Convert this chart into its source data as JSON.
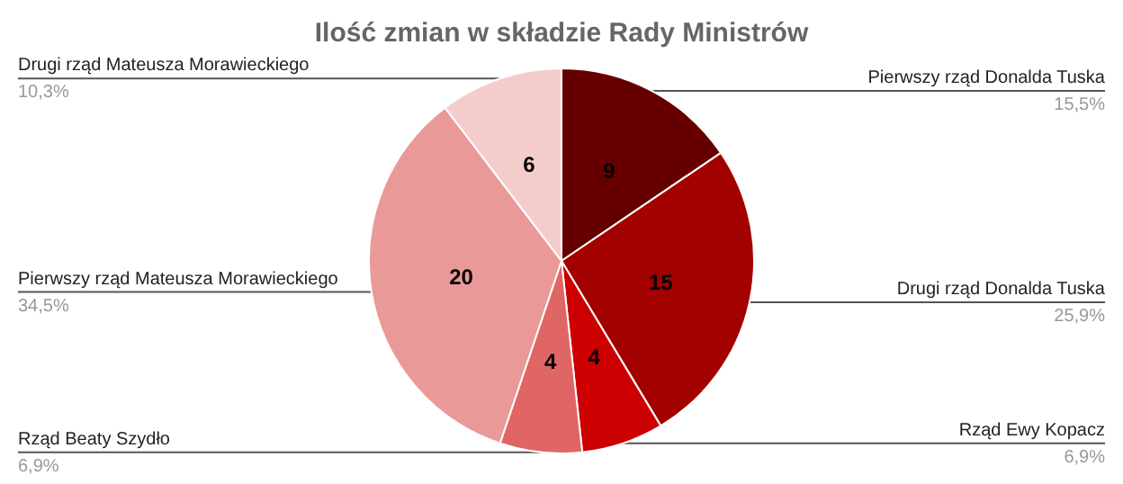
{
  "chart_data": {
    "type": "pie",
    "title": "Ilość zmian w składzie Rady Ministrów",
    "categories": [
      "Pierwszy rząd Donalda Tuska",
      "Drugi rząd Donalda Tuska",
      "Rząd Ewy Kopacz",
      "Rząd Beaty Szydło",
      "Pierwszy rząd Mateusza Morawieckiego",
      "Drugi rząd Mateusza Morawieckiego"
    ],
    "values": [
      9,
      15,
      4,
      4,
      20,
      6
    ],
    "colors": [
      "#660000",
      "#a30000",
      "#cc0000",
      "#e06666",
      "#ea9999",
      "#f4cccc"
    ],
    "annotations": [
      "15,5%",
      "25,9%",
      "6,9%",
      "6,9%",
      "34,5%",
      "10,3%"
    ],
    "data_labels": true,
    "legend": false
  }
}
